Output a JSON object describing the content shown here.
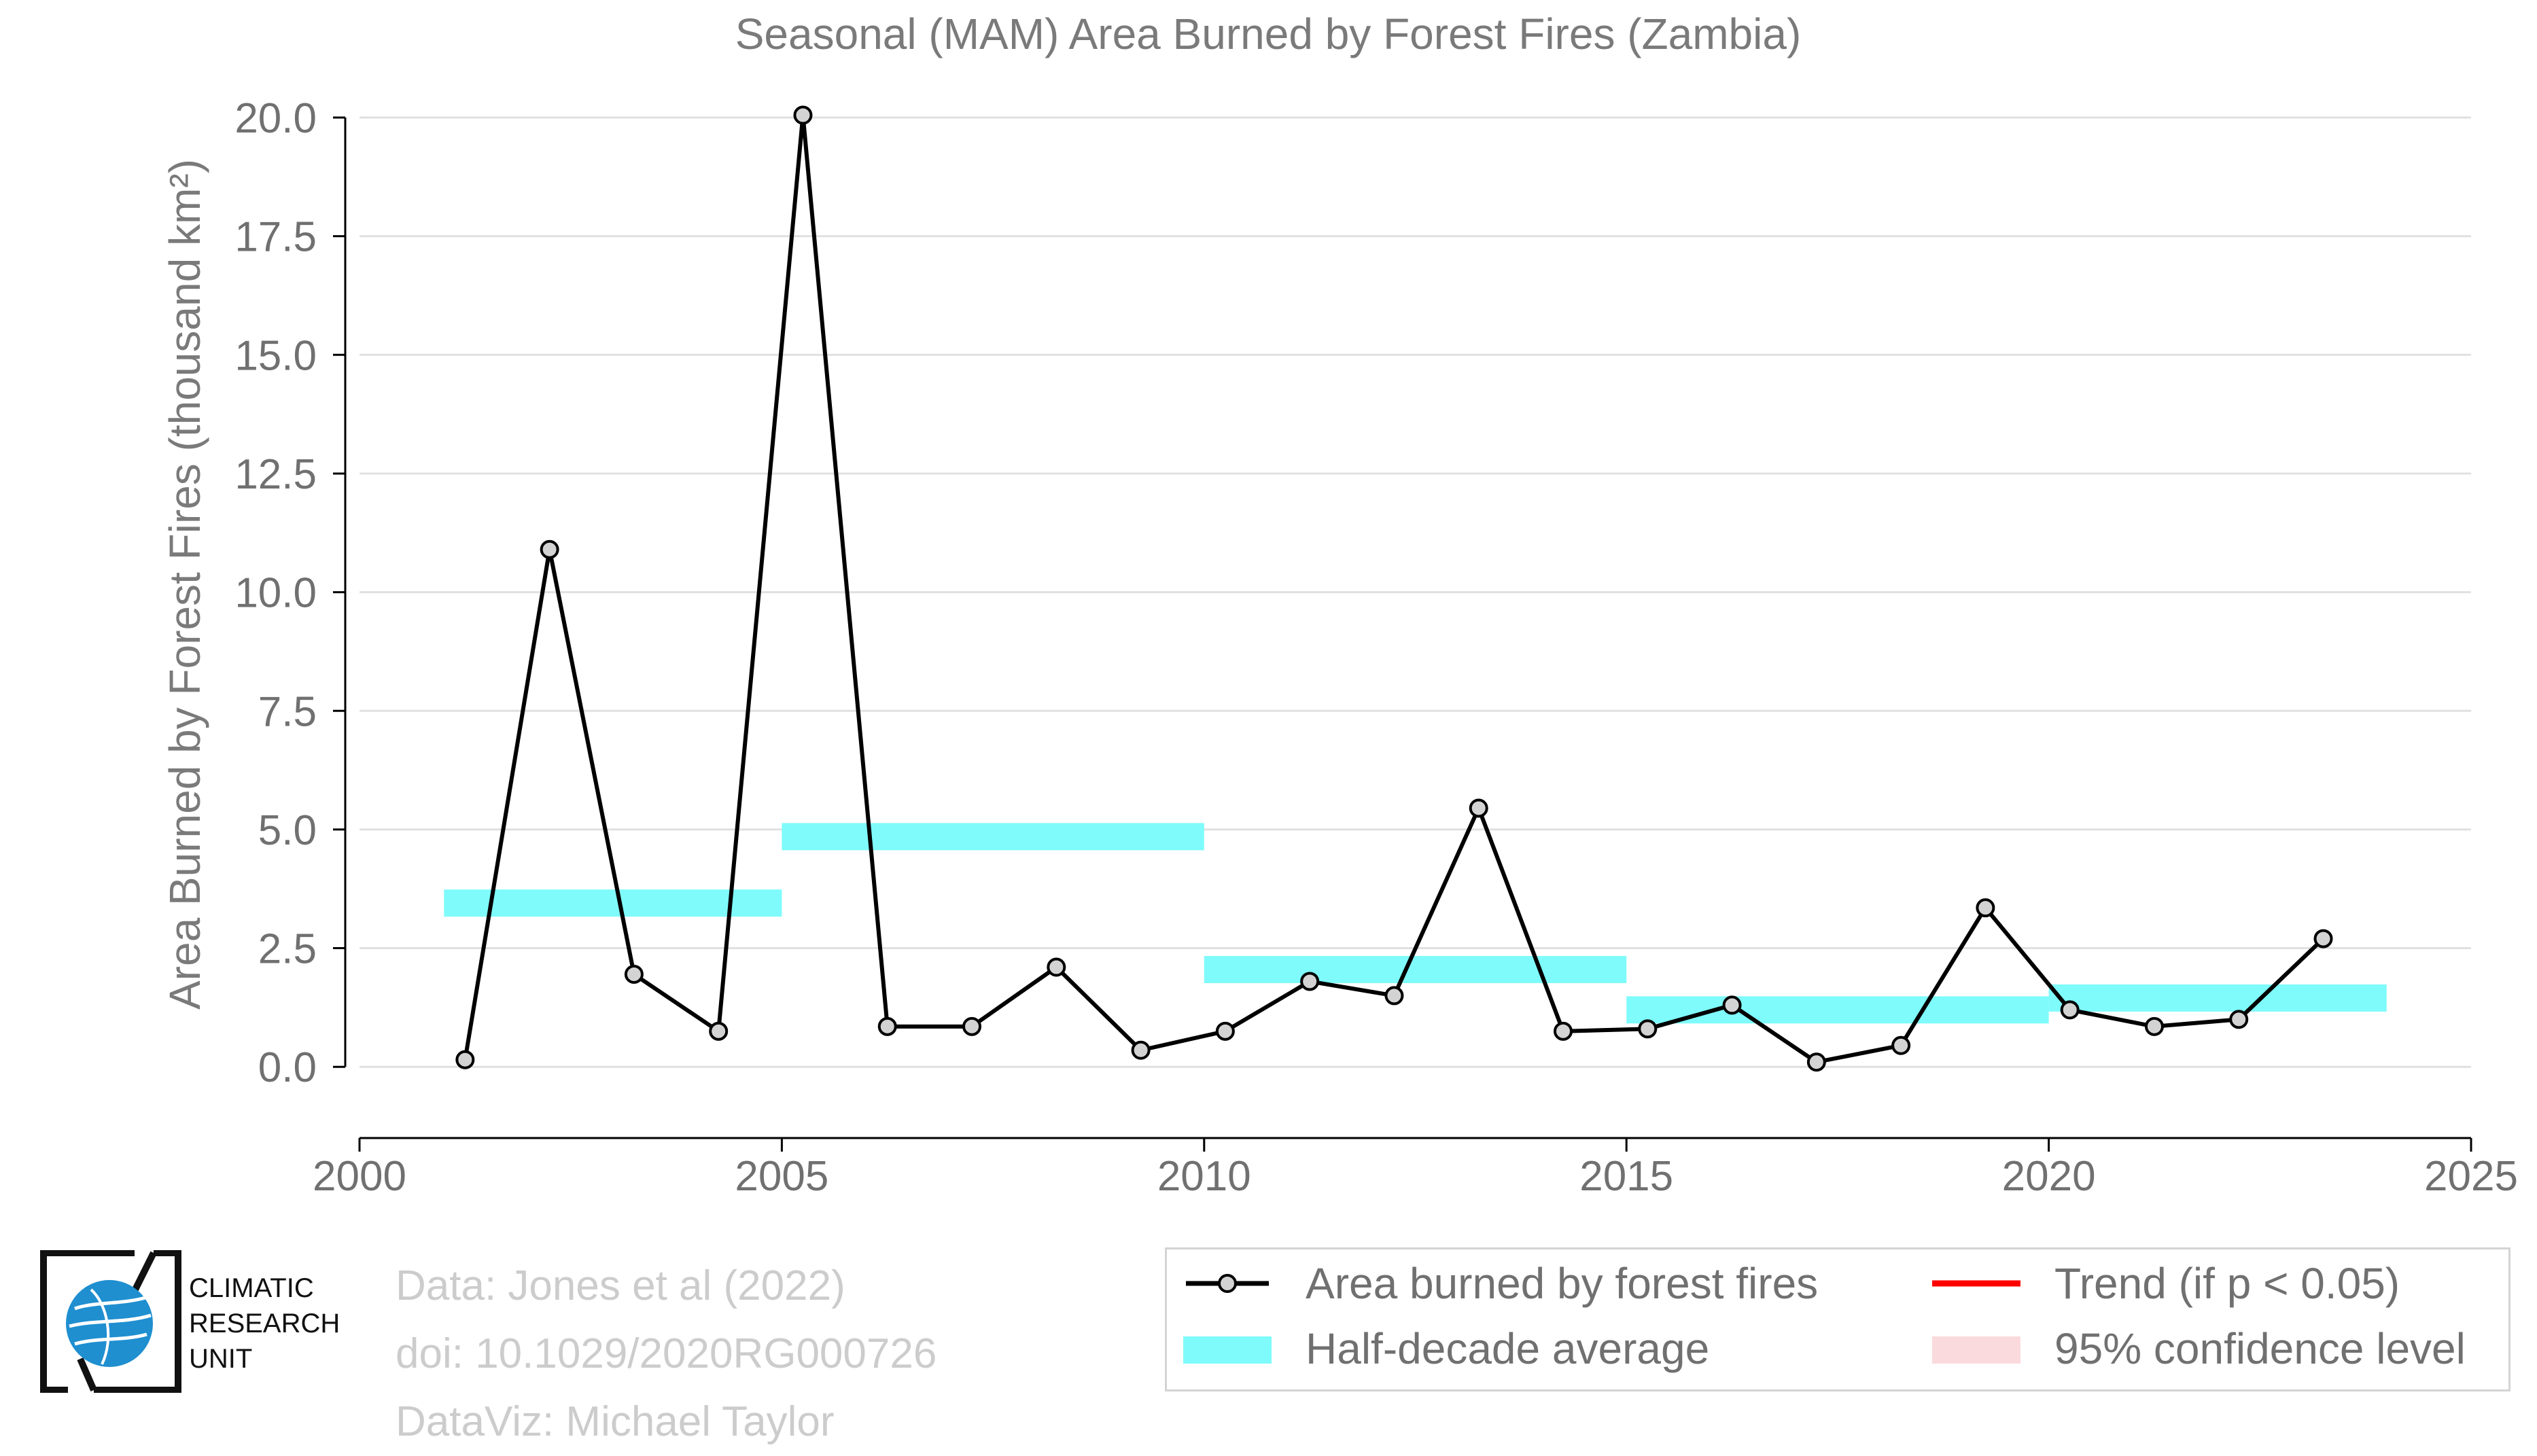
{
  "chart_data": {
    "type": "line",
    "title": "Seasonal (MAM) Area Burned by Forest Fires (Zambia)",
    "xlabel": "",
    "ylabel": "Area Burned by Forest Fires (thousand km²)",
    "xlim": [
      2000,
      2025
    ],
    "ylim": [
      -1.5,
      20.0
    ],
    "xticks": [
      2000,
      2005,
      2010,
      2015,
      2020,
      2025
    ],
    "xtick_labels": [
      "2000",
      "2005",
      "2010",
      "2015",
      "2020",
      "2025"
    ],
    "yticks": [
      0.0,
      2.5,
      5.0,
      7.5,
      10.0,
      12.5,
      15.0,
      17.5,
      20.0
    ],
    "ytick_labels": [
      "0.0",
      "2.5",
      "5.0",
      "7.5",
      "10.0",
      "12.5",
      "15.0",
      "17.5",
      "20.0"
    ],
    "grid": "horizontal",
    "legend_placement": "bottom-right",
    "series": [
      {
        "name": "Area burned by forest fires",
        "type": "line",
        "color": "#000000",
        "marker_color": "#d3d3d3",
        "x": [
          2001,
          2002,
          2003,
          2004,
          2005,
          2006,
          2007,
          2008,
          2009,
          2010,
          2011,
          2012,
          2013,
          2014,
          2015,
          2016,
          2017,
          2018,
          2019,
          2020,
          2021,
          2022,
          2023
        ],
        "values": [
          0.15,
          10.9,
          1.95,
          0.75,
          20.05,
          0.85,
          0.85,
          2.1,
          0.35,
          0.75,
          1.8,
          1.5,
          5.45,
          0.75,
          0.8,
          1.3,
          0.1,
          0.45,
          3.35,
          1.2,
          0.85,
          1.0,
          2.7
        ]
      },
      {
        "name": "Half-decade average",
        "type": "step-bar",
        "color": "#7ffbfb",
        "segments": [
          {
            "x_start": 2001,
            "x_end": 2005,
            "value": 3.45
          },
          {
            "x_start": 2005,
            "x_end": 2010,
            "value": 4.85
          },
          {
            "x_start": 2010,
            "x_end": 2015,
            "value": 2.05
          },
          {
            "x_start": 2015,
            "x_end": 2020,
            "value": 1.2
          },
          {
            "x_start": 2020,
            "x_end": 2024,
            "value": 1.45
          }
        ]
      }
    ],
    "legend": [
      {
        "key": "line-marker",
        "label": "Area burned by forest fires",
        "color": "#000000"
      },
      {
        "key": "trend",
        "label": "Trend (if p < 0.05)",
        "color": "#ff0000"
      },
      {
        "key": "cyan-bar",
        "label": "Half-decade average",
        "color": "#7ffbfb"
      },
      {
        "key": "pink-bar",
        "label": "95% confidence level",
        "color": "#fadadd"
      }
    ]
  },
  "credits": {
    "line1": "Data: Jones et al (2022)",
    "line2": "doi: 10.1029/2020RG000726",
    "line3": "DataViz: Michael Taylor"
  },
  "logo": {
    "line1": "CLIMATIC",
    "line2": "RESEARCH",
    "line3": "UNIT",
    "color": "#1f8fd0"
  },
  "colors": {
    "axis_text": "#707070",
    "grid": "#e0e0e0",
    "credits": "#cccccc"
  }
}
